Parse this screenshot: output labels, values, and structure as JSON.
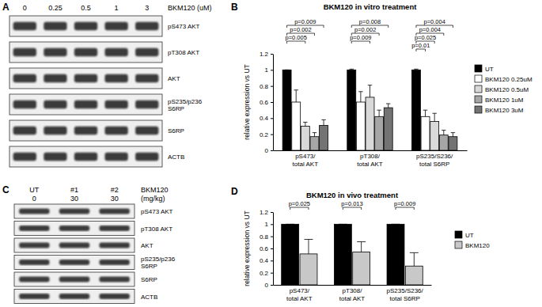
{
  "panels": [
    "A",
    "B",
    "C",
    "D"
  ],
  "blots": [
    {
      "lane_labels": [
        [
          0,
          0.25,
          0.5,
          1,
          3
        ]
      ],
      "lane_title": [
        "BKM120 (uM)"
      ],
      "rows": [
        [
          "pS473 AKT"
        ],
        [
          "pT308 AKT"
        ],
        [
          "AKT"
        ],
        [
          "pS235/p236",
          "S6RP"
        ],
        [
          "S6RP"
        ],
        [
          "ACTB"
        ]
      ]
    },
    {
      "lane_labels": [
        [
          "UT",
          "#1",
          "#2"
        ],
        [
          0,
          30,
          30
        ]
      ],
      "lane_title": [
        "BKM120",
        "(mg/kg)"
      ],
      "rows": [
        [
          "pS473 AKT"
        ],
        [
          "pT308 AKT"
        ],
        [
          "AKT"
        ],
        [
          "pS235/p236",
          "S6RP"
        ],
        [
          "S6RP"
        ],
        [
          "ACTB"
        ]
      ]
    }
  ],
  "chart_data": [
    {
      "type": "bar",
      "title": "BKM120 in vitro treatment",
      "y_label": "relative expression vs UT",
      "categories": [
        "pS473/\ntotal AKT",
        "pT308/\ntotal AKT",
        "pS235/S236/\ntotal S6RP"
      ],
      "series": [
        {
          "name": "UT",
          "color": "#000000",
          "values": [
            1,
            1,
            1
          ],
          "errors": [
            0,
            0.01,
            0.01
          ]
        },
        {
          "name": "BKM120 0.25uM",
          "color": "#ffffff",
          "values": [
            0.6,
            0.6,
            0.42
          ],
          "errors": [
            0.15,
            0.13,
            0.08
          ]
        },
        {
          "name": "BKM120 0.5uM",
          "color": "#d9d9d9",
          "values": [
            0.3,
            0.66,
            0.36
          ],
          "errors": [
            0.05,
            0.15,
            0.1
          ]
        },
        {
          "name": "BKM120 1uM",
          "color": "#a6a6a6",
          "values": [
            0.17,
            0.42,
            0.19
          ],
          "errors": [
            0.05,
            0.08,
            0.06
          ]
        },
        {
          "name": "BKM120 3uM",
          "color": "#737373",
          "values": [
            0.31,
            0.53,
            0.17
          ],
          "errors": [
            0.07,
            0.05,
            0.05
          ]
        }
      ],
      "ylim": [
        0,
        1.2
      ],
      "yticks": [
        0,
        0.2,
        0.4,
        0.6,
        0.8,
        1,
        1.2
      ],
      "legend": "right",
      "annotations": [
        {
          "text": "p=0.009",
          "category": 0,
          "from": 0,
          "to": 4
        },
        {
          "text": "p=0.002",
          "category": 0,
          "from": 0,
          "to": 3
        },
        {
          "text": "p=0.005",
          "category": 0,
          "from": 0,
          "to": 2
        },
        {
          "text": "p=0.008",
          "category": 1,
          "from": 0,
          "to": 4
        },
        {
          "text": "p=0.002",
          "category": 1,
          "from": 0,
          "to": 3
        },
        {
          "text": "p=0.009",
          "category": 1,
          "from": 0,
          "to": 2
        },
        {
          "text": "p=0.004",
          "category": 2,
          "from": 0,
          "to": 4
        },
        {
          "text": "p=0.004",
          "category": 2,
          "from": 0,
          "to": 3
        },
        {
          "text": "p=0.025",
          "category": 2,
          "from": 0,
          "to": 2
        },
        {
          "text": "p=0.01",
          "category": 2,
          "from": 0,
          "to": 1
        }
      ]
    },
    {
      "type": "bar",
      "title": "BKM120 in vivo treatment",
      "y_label": "relative expression vs UT",
      "categories": [
        "pS473/\ntotal AKT",
        "pT308/\ntotal AKT",
        "pS235/S236/\ntotal S6RP"
      ],
      "series": [
        {
          "name": "UT",
          "color": "#000000",
          "values": [
            1,
            1,
            1
          ],
          "errors": [
            0,
            0,
            0
          ]
        },
        {
          "name": "BKM120",
          "color": "#c8c8c8",
          "values": [
            0.51,
            0.54,
            0.31
          ],
          "errors": [
            0.24,
            0.17,
            0.22
          ]
        }
      ],
      "ylim": [
        0,
        1.2
      ],
      "yticks": [
        0,
        0.2,
        0.4,
        0.6,
        0.8,
        1,
        1.2
      ],
      "legend": "right",
      "annotations": [
        {
          "text": "p=0.025",
          "category": 0,
          "from": 0,
          "to": 1
        },
        {
          "text": "p=0.013",
          "category": 1,
          "from": 0,
          "to": 1
        },
        {
          "text": "p=0.009",
          "category": 2,
          "from": 0,
          "to": 1
        }
      ]
    }
  ]
}
